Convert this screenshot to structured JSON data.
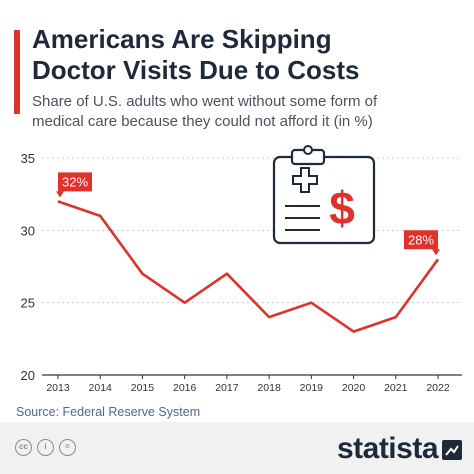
{
  "header": {
    "title_line1": "Americans Are Skipping",
    "title_line2": "Doctor Visits Due to Costs",
    "subtitle_line1": "Share of U.S. adults who went without some form of",
    "subtitle_line2": "medical care because they could not afford it (in %)"
  },
  "chart_data": {
    "type": "line",
    "title": "Americans Are Skipping Doctor Visits Due to Costs",
    "subtitle": "Share of U.S. adults who went without some form of medical care because they could not afford it (in %)",
    "x": [
      "2013",
      "2014",
      "2015",
      "2016",
      "2017",
      "2018",
      "2019",
      "2020",
      "2021",
      "2022"
    ],
    "series": [
      {
        "values": [
          32,
          31,
          27,
          25,
          27,
          24,
          25,
          23,
          24,
          28
        ],
        "color": "#e0312b"
      }
    ],
    "annotations": [
      {
        "x": "2013",
        "label": "32%"
      },
      {
        "x": "2022",
        "label": "28%"
      }
    ],
    "yticks": [
      20,
      25,
      30,
      35
    ],
    "ylim": [
      20,
      35
    ],
    "grid": true,
    "xlabel": "",
    "ylabel": ""
  },
  "illustration": {
    "icon": "clipboard-medical-dollar-icon",
    "symbol": "$"
  },
  "source": "Source: Federal Reserve System",
  "footer": {
    "brand": "statista",
    "cc_icons": [
      "creative-commons-icon",
      "attribution-icon",
      "no-derivatives-icon"
    ],
    "cc_glyphs": [
      "cc",
      "i",
      "="
    ]
  },
  "colors": {
    "accent": "#e0312b",
    "text_dark": "#1d2a3a",
    "source_link": "#4a6a95"
  }
}
